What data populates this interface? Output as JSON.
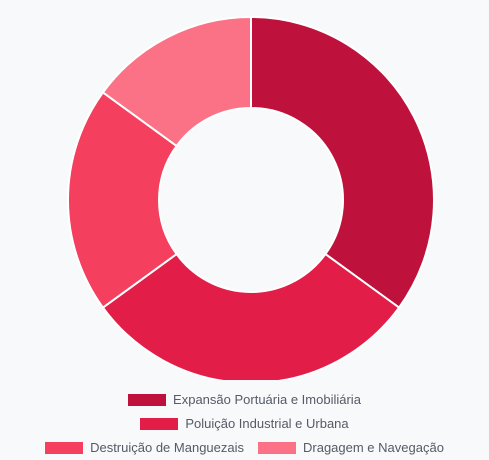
{
  "chart_data": {
    "type": "pie",
    "variant": "doughnut",
    "categories": [
      "Expansão Portuária e Imobiliária",
      "Poluição Industrial e Urbana",
      "Destruição de Manguezais",
      "Dragagem e Navegação"
    ],
    "values": [
      35,
      30,
      20,
      15
    ],
    "colors": [
      "#be123c",
      "#e11d48",
      "#f43f5e",
      "#fb7185"
    ],
    "legend_position": "bottom",
    "title": ""
  }
}
